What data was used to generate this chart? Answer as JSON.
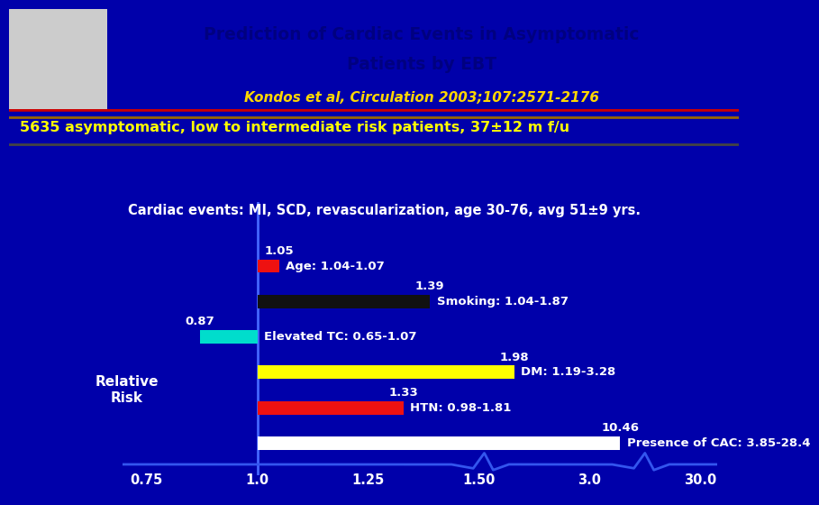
{
  "title_line1": "Prediction of Cardiac Events in Asymptomatic",
  "title_line2": "Patients by EBT",
  "subtitle": "Kondos et al, Circulation 2003;107:2571-2176",
  "banner_text": "5635 asymptomatic, low to intermediate risk patients, 37±12 m f/u",
  "cardiac_text": "Cardiac events: MI, SCD, revascularization, age 30-76, avg 51±9 yrs.",
  "bg_color": "#0000AA",
  "header_bg": "#FFFFFF",
  "title_color": "#000080",
  "subtitle_color": "#FFD700",
  "banner_text_color": "#FFFF00",
  "bars": [
    {
      "label": "Age: 1.04-1.07",
      "value": 1.05,
      "color": "#EE1111",
      "y": 5,
      "value_label": "1.05"
    },
    {
      "label": "Smoking: 1.04-1.87",
      "value": 1.39,
      "color": "#111111",
      "y": 4,
      "value_label": "1.39"
    },
    {
      "label": "Elevated TC: 0.65-1.07",
      "value": 0.87,
      "color": "#00DDCC",
      "y": 3,
      "value_label": "0.87"
    },
    {
      "label": "DM: 1.19-3.28",
      "value": 1.98,
      "color": "#FFFF00",
      "y": 2,
      "value_label": "1.98"
    },
    {
      "label": "HTN: 0.98-1.81",
      "value": 1.33,
      "color": "#EE1111",
      "y": 1,
      "value_label": "1.33"
    },
    {
      "label": "Presence of CAC: 3.85-28.4",
      "value": 10.46,
      "color": "#FFFFFF",
      "y": 0,
      "value_label": "10.46"
    }
  ],
  "tick_values": [
    0.75,
    1.0,
    1.25,
    1.5,
    3.0,
    30.0
  ],
  "tick_positions": [
    0,
    1,
    2,
    3,
    4,
    5
  ],
  "relative_risk_label": "Relative\nRisk",
  "bar_height": 0.38,
  "ref_line_color": "#4466FF",
  "ecg_line_color": "#3355EE",
  "white_text": "#FFFFFF"
}
